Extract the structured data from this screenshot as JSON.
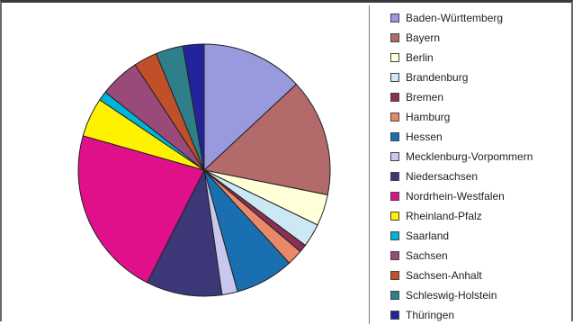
{
  "chart_data": {
    "type": "pie",
    "title": "",
    "legend": "right",
    "start_angle_deg": 0,
    "slices": [
      {
        "label": "Baden-Württemberg",
        "value": 13.0,
        "color": "#9999dd"
      },
      {
        "label": "Bayern",
        "value": 15.0,
        "color": "#b26a6a"
      },
      {
        "label": "Berlin",
        "value": 4.0,
        "color": "#ffffd8"
      },
      {
        "label": "Brandenburg",
        "value": 3.0,
        "color": "#cce8f4"
      },
      {
        "label": "Bremen",
        "value": 1.0,
        "color": "#8b2f55"
      },
      {
        "label": "Hamburg",
        "value": 2.0,
        "color": "#e88a6a"
      },
      {
        "label": "Hessen",
        "value": 7.5,
        "color": "#1a6fb0"
      },
      {
        "label": "Mecklenburg-Vorpommern",
        "value": 2.0,
        "color": "#c8c8ee"
      },
      {
        "label": "Niedersachsen",
        "value": 9.7,
        "color": "#3c3878"
      },
      {
        "label": "Nordrhein-Westfalen",
        "value": 21.8,
        "color": "#e0108a"
      },
      {
        "label": "Rheinland-Pfalz",
        "value": 5.0,
        "color": "#fff200"
      },
      {
        "label": "Saarland",
        "value": 1.2,
        "color": "#00b4d8"
      },
      {
        "label": "Sachsen",
        "value": 5.1,
        "color": "#9a4a78"
      },
      {
        "label": "Sachsen-Anhalt",
        "value": 3.0,
        "color": "#c0502a"
      },
      {
        "label": "Schleswig-Holstein",
        "value": 3.5,
        "color": "#2f7f8a"
      },
      {
        "label": "Thüringen",
        "value": 2.7,
        "color": "#24249a"
      }
    ]
  }
}
